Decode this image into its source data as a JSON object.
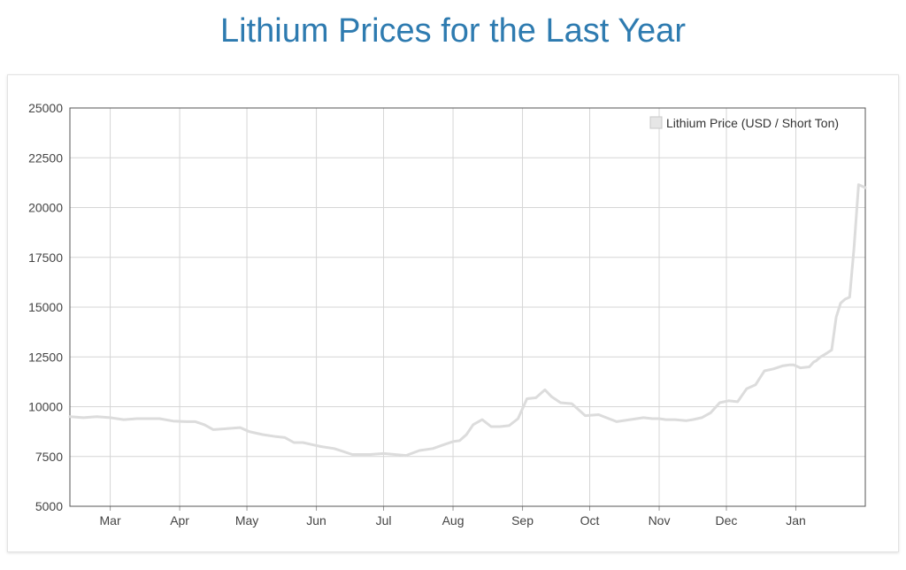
{
  "header": {
    "title": "Lithium Prices for the Last Year"
  },
  "chart_data": {
    "type": "line",
    "title": "Lithium Prices for the Last Year",
    "xlabel": "",
    "ylabel": "",
    "ylim": [
      5000,
      25000
    ],
    "yticks": [
      5000,
      7500,
      10000,
      12500,
      15000,
      17500,
      20000,
      22500,
      25000
    ],
    "xlim_days": [
      0,
      355
    ],
    "xticks": [
      {
        "label": "Mar",
        "day": 18
      },
      {
        "label": "Apr",
        "day": 49
      },
      {
        "label": "May",
        "day": 79
      },
      {
        "label": "Jun",
        "day": 110
      },
      {
        "label": "Jul",
        "day": 140
      },
      {
        "label": "Aug",
        "day": 171
      },
      {
        "label": "Sep",
        "day": 202
      },
      {
        "label": "Oct",
        "day": 232
      },
      {
        "label": "Nov",
        "day": 263
      },
      {
        "label": "Dec",
        "day": 293
      },
      {
        "label": "Jan",
        "day": 324
      }
    ],
    "grid": true,
    "legend_position": "top-right",
    "series": [
      {
        "name": "Lithium Price (USD / Short Ton)",
        "color": "#dcdcdc",
        "x": [
          0,
          6,
          12,
          18,
          24,
          30,
          36,
          40,
          46,
          52,
          56,
          60,
          64,
          70,
          76,
          80,
          86,
          92,
          96,
          100,
          104,
          108,
          112,
          118,
          126,
          134,
          140,
          145,
          150,
          156,
          162,
          167,
          171,
          174,
          177,
          180,
          184,
          188,
          192,
          196,
          200,
          204,
          208,
          212,
          215,
          219,
          224,
          230,
          236,
          244,
          250,
          256,
          260,
          263,
          266,
          270,
          275,
          278,
          282,
          286,
          290,
          294,
          298,
          302,
          306,
          310,
          314,
          318,
          321,
          323,
          326,
          330,
          332,
          333,
          335,
          338,
          340,
          342,
          344,
          346,
          348,
          350,
          352,
          355
        ],
        "values": [
          9500,
          9450,
          9500,
          9450,
          9350,
          9400,
          9400,
          9400,
          9280,
          9250,
          9250,
          9100,
          8850,
          8900,
          8950,
          8750,
          8600,
          8500,
          8450,
          8200,
          8200,
          8100,
          8000,
          7900,
          7600,
          7600,
          7650,
          7600,
          7550,
          7800,
          7900,
          8100,
          8250,
          8300,
          8600,
          9100,
          9350,
          9000,
          9000,
          9050,
          9400,
          10400,
          10450,
          10850,
          10500,
          10200,
          10150,
          9550,
          9600,
          9250,
          9350,
          9450,
          9400,
          9400,
          9350,
          9350,
          9300,
          9350,
          9450,
          9700,
          10200,
          10300,
          10250,
          10900,
          11100,
          11800,
          11900,
          12050,
          12100,
          12100,
          11950,
          12000,
          12250,
          12300,
          12500,
          12700,
          12850,
          14500,
          15200,
          15400,
          15500,
          18000,
          21150,
          21000
        ]
      }
    ]
  }
}
